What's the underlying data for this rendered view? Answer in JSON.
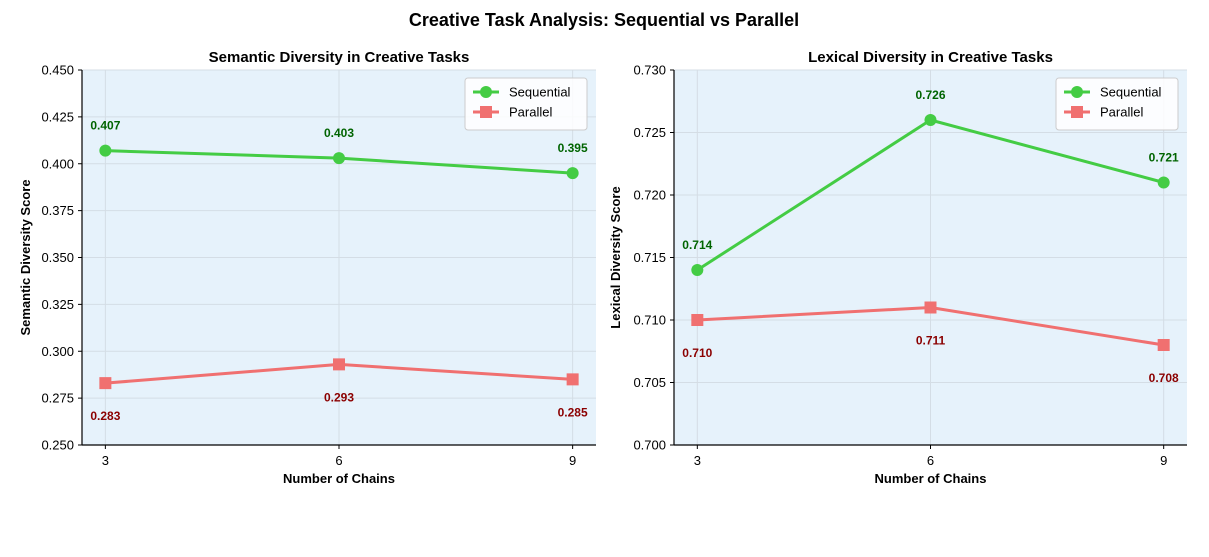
{
  "figure": {
    "suptitle": "Creative Task Analysis: Sequential vs Parallel"
  },
  "colors": {
    "background": "#e6f2fb",
    "grid": "#d4dde5",
    "sequential": "#44cc44",
    "parallel": "#f07070",
    "sequential_label": "#006400",
    "parallel_label": "#8b0000"
  },
  "chart_data": [
    {
      "type": "line",
      "title": "Semantic Diversity in Creative Tasks",
      "xlabel": "Number of Chains",
      "ylabel": "Semantic Diversity Score",
      "x": [
        3,
        6,
        9
      ],
      "xticks": [
        "3",
        "6",
        "9"
      ],
      "xlim": [
        2.7,
        9.3
      ],
      "ylim": [
        0.25,
        0.45
      ],
      "yticks": [
        "0.250",
        "0.275",
        "0.300",
        "0.325",
        "0.350",
        "0.375",
        "0.400",
        "0.425",
        "0.450"
      ],
      "grid": true,
      "legend": "top-right",
      "series": [
        {
          "name": "Sequential",
          "values": [
            0.407,
            0.403,
            0.395
          ],
          "labels": [
            "0.407",
            "0.403",
            "0.395"
          ],
          "marker": "circle",
          "label_position": "above"
        },
        {
          "name": "Parallel",
          "values": [
            0.283,
            0.293,
            0.285
          ],
          "labels": [
            "0.283",
            "0.293",
            "0.285"
          ],
          "marker": "square",
          "label_position": "below"
        }
      ]
    },
    {
      "type": "line",
      "title": "Lexical Diversity in Creative Tasks",
      "xlabel": "Number of Chains",
      "ylabel": "Lexical Diversity Score",
      "x": [
        3,
        6,
        9
      ],
      "xticks": [
        "3",
        "6",
        "9"
      ],
      "xlim": [
        2.7,
        9.3
      ],
      "ylim": [
        0.7,
        0.73
      ],
      "yticks": [
        "0.700",
        "0.705",
        "0.710",
        "0.715",
        "0.720",
        "0.725",
        "0.730"
      ],
      "grid": true,
      "legend": "top-right",
      "series": [
        {
          "name": "Sequential",
          "values": [
            0.714,
            0.726,
            0.721
          ],
          "labels": [
            "0.714",
            "0.726",
            "0.721"
          ],
          "marker": "circle",
          "label_position": "above"
        },
        {
          "name": "Parallel",
          "values": [
            0.71,
            0.711,
            0.708
          ],
          "labels": [
            "0.710",
            "0.711",
            "0.708"
          ],
          "marker": "square",
          "label_position": "below"
        }
      ]
    }
  ]
}
